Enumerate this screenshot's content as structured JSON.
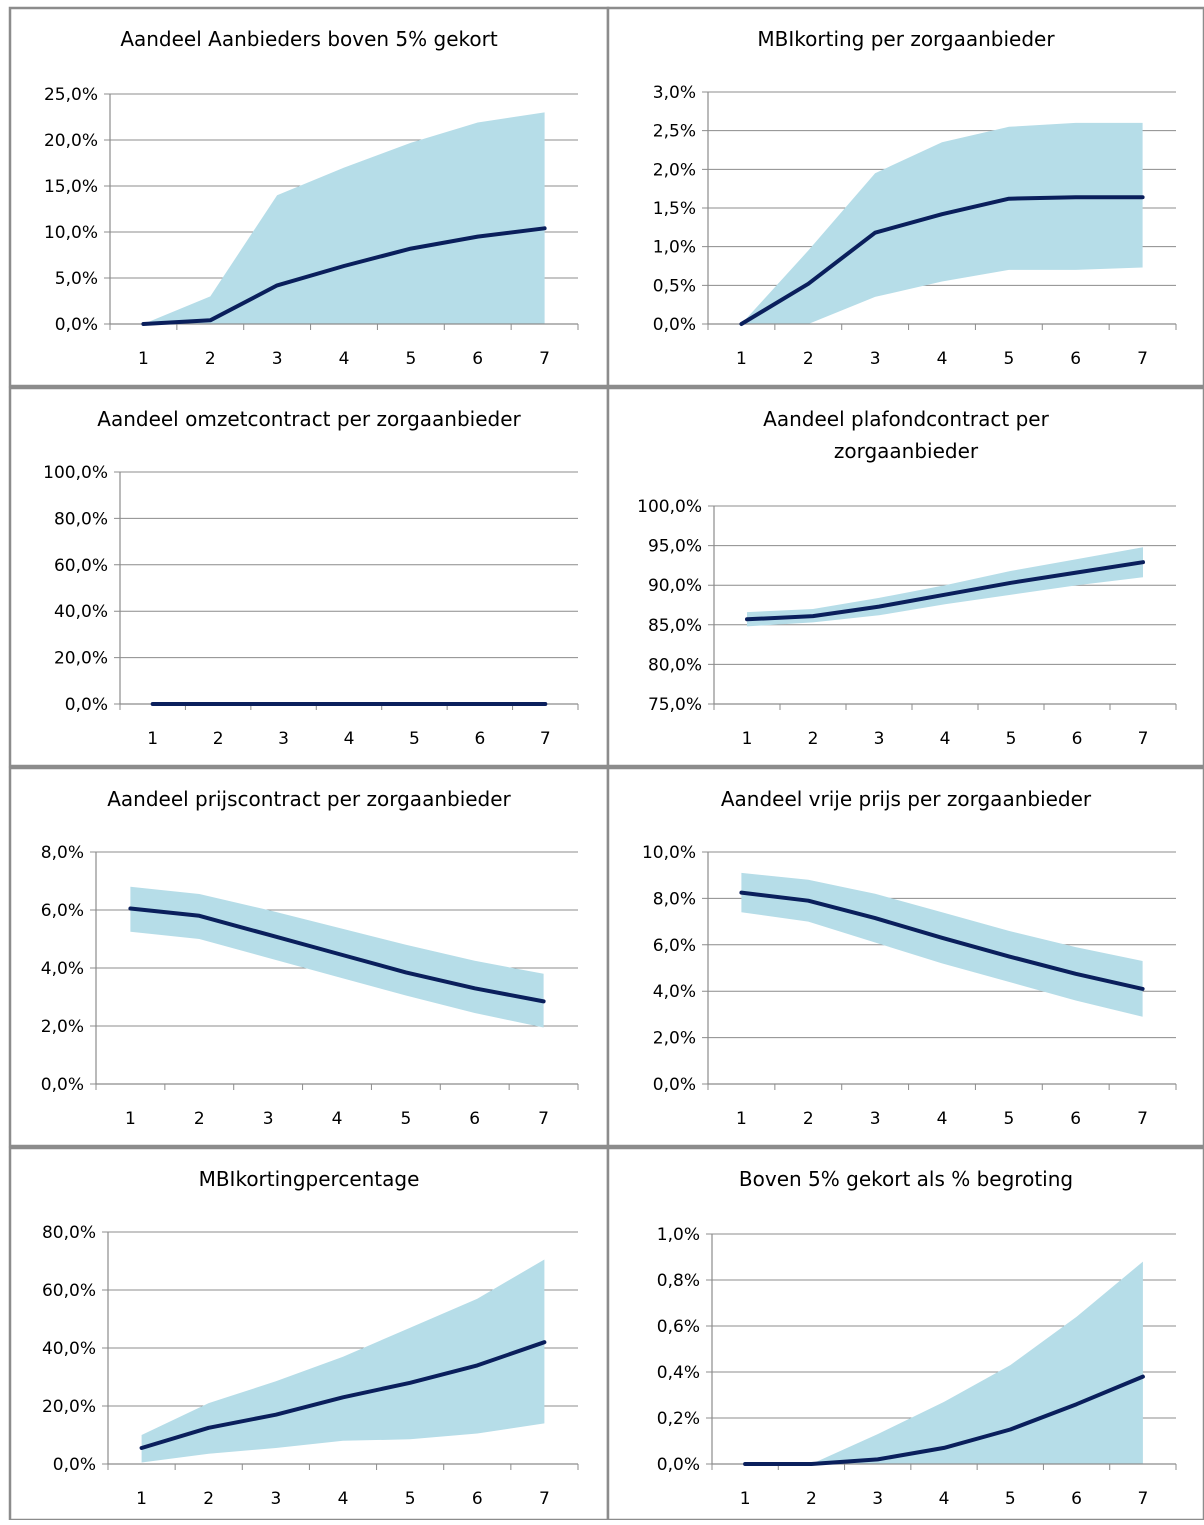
{
  "colors": {
    "band": "#b6dde8",
    "line": "#0a1f5c",
    "grid": "#8c8c8c",
    "axis": "#8c8c8c",
    "frame": "#8c8c8c"
  },
  "chart_data": [
    {
      "type": "area",
      "title": [
        "Aandeel Aanbieders boven 5% gekort"
      ],
      "x": [
        1,
        2,
        3,
        4,
        5,
        6,
        7
      ],
      "ylim": [
        0,
        25
      ],
      "yticks": [
        0,
        5,
        10,
        15,
        20,
        25
      ],
      "ytick_labels": [
        "0,0%",
        "5,0%",
        "10,0%",
        "15,0%",
        "20,0%",
        "25,0%"
      ],
      "band_low": [
        0,
        0,
        0,
        0,
        0,
        0,
        0
      ],
      "band_high": [
        0,
        3.0,
        14.0,
        17.0,
        19.7,
        21.9,
        23.0
      ],
      "line": [
        0,
        0.4,
        4.2,
        6.3,
        8.2,
        9.5,
        10.4
      ]
    },
    {
      "type": "area",
      "title": [
        "MBIkorting per zorgaanbieder"
      ],
      "x": [
        1,
        2,
        3,
        4,
        5,
        6,
        7
      ],
      "ylim": [
        0,
        3
      ],
      "yticks": [
        0,
        0.5,
        1,
        1.5,
        2,
        2.5,
        3
      ],
      "ytick_labels": [
        "0,0%",
        "0,5%",
        "1,0%",
        "1,5%",
        "2,0%",
        "2,5%",
        "3,0%"
      ],
      "band_low": [
        0,
        0,
        0.35,
        0.55,
        0.7,
        0.7,
        0.73
      ],
      "band_high": [
        0,
        0.95,
        1.95,
        2.35,
        2.55,
        2.6,
        2.6
      ],
      "line": [
        0,
        0.52,
        1.18,
        1.42,
        1.62,
        1.64,
        1.64
      ]
    },
    {
      "type": "area",
      "title": [
        "Aandeel omzetcontract  per zorgaanbieder"
      ],
      "x": [
        1,
        2,
        3,
        4,
        5,
        6,
        7
      ],
      "ylim": [
        0,
        100
      ],
      "yticks": [
        0,
        20,
        40,
        60,
        80,
        100
      ],
      "ytick_labels": [
        "0,0%",
        "20,0%",
        "40,0%",
        "60,0%",
        "80,0%",
        "100,0%"
      ],
      "band_low": [
        0,
        0,
        0,
        0,
        0,
        0,
        0
      ],
      "band_high": [
        0,
        0,
        0,
        0,
        0,
        0,
        0
      ],
      "line": [
        0,
        0,
        0,
        0,
        0,
        0,
        0
      ]
    },
    {
      "type": "area",
      "title": [
        "Aandeel plafondcontract per",
        "zorgaanbieder"
      ],
      "x": [
        1,
        2,
        3,
        4,
        5,
        6,
        7
      ],
      "ylim": [
        75,
        100
      ],
      "yticks": [
        75,
        80,
        85,
        90,
        95,
        100
      ],
      "ytick_labels": [
        "75,0%",
        "80,0%",
        "85,0%",
        "90,0%",
        "95,0%",
        "100,0%"
      ],
      "band_low": [
        84.8,
        85.3,
        86.2,
        87.6,
        88.8,
        90.0,
        91.0
      ],
      "band_high": [
        86.6,
        87.0,
        88.4,
        90.0,
        91.8,
        93.3,
        94.8
      ],
      "line": [
        85.7,
        86.1,
        87.3,
        88.8,
        90.3,
        91.6,
        92.9
      ]
    },
    {
      "type": "area",
      "title": [
        "Aandeel prijscontract per zorgaanbieder"
      ],
      "x": [
        1,
        2,
        3,
        4,
        5,
        6,
        7
      ],
      "ylim": [
        0,
        8
      ],
      "yticks": [
        0,
        2,
        4,
        6,
        8
      ],
      "ytick_labels": [
        "0,0%",
        "2,0%",
        "4,0%",
        "6,0%",
        "8,0%"
      ],
      "band_low": [
        5.25,
        5.0,
        4.35,
        3.7,
        3.05,
        2.45,
        1.95
      ],
      "band_high": [
        6.8,
        6.55,
        6.0,
        5.4,
        4.8,
        4.25,
        3.8
      ],
      "line": [
        6.05,
        5.8,
        5.15,
        4.5,
        3.85,
        3.3,
        2.85
      ]
    },
    {
      "type": "area",
      "title": [
        "Aandeel vrije prijs per zorgaanbieder"
      ],
      "x": [
        1,
        2,
        3,
        4,
        5,
        6,
        7
      ],
      "ylim": [
        0,
        10
      ],
      "yticks": [
        0,
        2,
        4,
        6,
        8,
        10
      ],
      "ytick_labels": [
        "0,0%",
        "2,0%",
        "4,0%",
        "6,0%",
        "8,0%",
        "10,0%"
      ],
      "band_low": [
        7.4,
        7.0,
        6.1,
        5.2,
        4.4,
        3.6,
        2.9
      ],
      "band_high": [
        9.1,
        8.8,
        8.2,
        7.4,
        6.6,
        5.9,
        5.3
      ],
      "line": [
        8.25,
        7.9,
        7.15,
        6.3,
        5.5,
        4.75,
        4.1
      ]
    },
    {
      "type": "area",
      "title": [
        "MBIkortingpercentage"
      ],
      "x": [
        1,
        2,
        3,
        4,
        5,
        6,
        7
      ],
      "ylim": [
        0,
        80
      ],
      "yticks": [
        0,
        20,
        40,
        60,
        80
      ],
      "ytick_labels": [
        "0,0%",
        "20,0%",
        "40,0%",
        "60,0%",
        "80,0%"
      ],
      "band_low": [
        0.5,
        3.5,
        5.5,
        8.0,
        8.5,
        10.5,
        14.0
      ],
      "band_high": [
        10.0,
        21.0,
        28.5,
        37.0,
        47.0,
        57.0,
        70.5
      ],
      "line": [
        5.5,
        12.5,
        17.0,
        23.0,
        28.0,
        34.0,
        42.0
      ]
    },
    {
      "type": "area",
      "title": [
        "Boven 5% gekort als % begroting"
      ],
      "x": [
        1,
        2,
        3,
        4,
        5,
        6,
        7
      ],
      "ylim": [
        0,
        1
      ],
      "yticks": [
        0,
        0.2,
        0.4,
        0.6,
        0.8,
        1.0
      ],
      "ytick_labels": [
        "0,0%",
        "0,2%",
        "0,4%",
        "0,6%",
        "0,8%",
        "1,0%"
      ],
      "band_low": [
        0,
        0,
        0,
        0,
        0,
        0,
        0
      ],
      "band_high": [
        0,
        0,
        0.13,
        0.27,
        0.43,
        0.64,
        0.88
      ],
      "line": [
        0,
        0,
        0.02,
        0.07,
        0.15,
        0.26,
        0.38
      ]
    }
  ]
}
